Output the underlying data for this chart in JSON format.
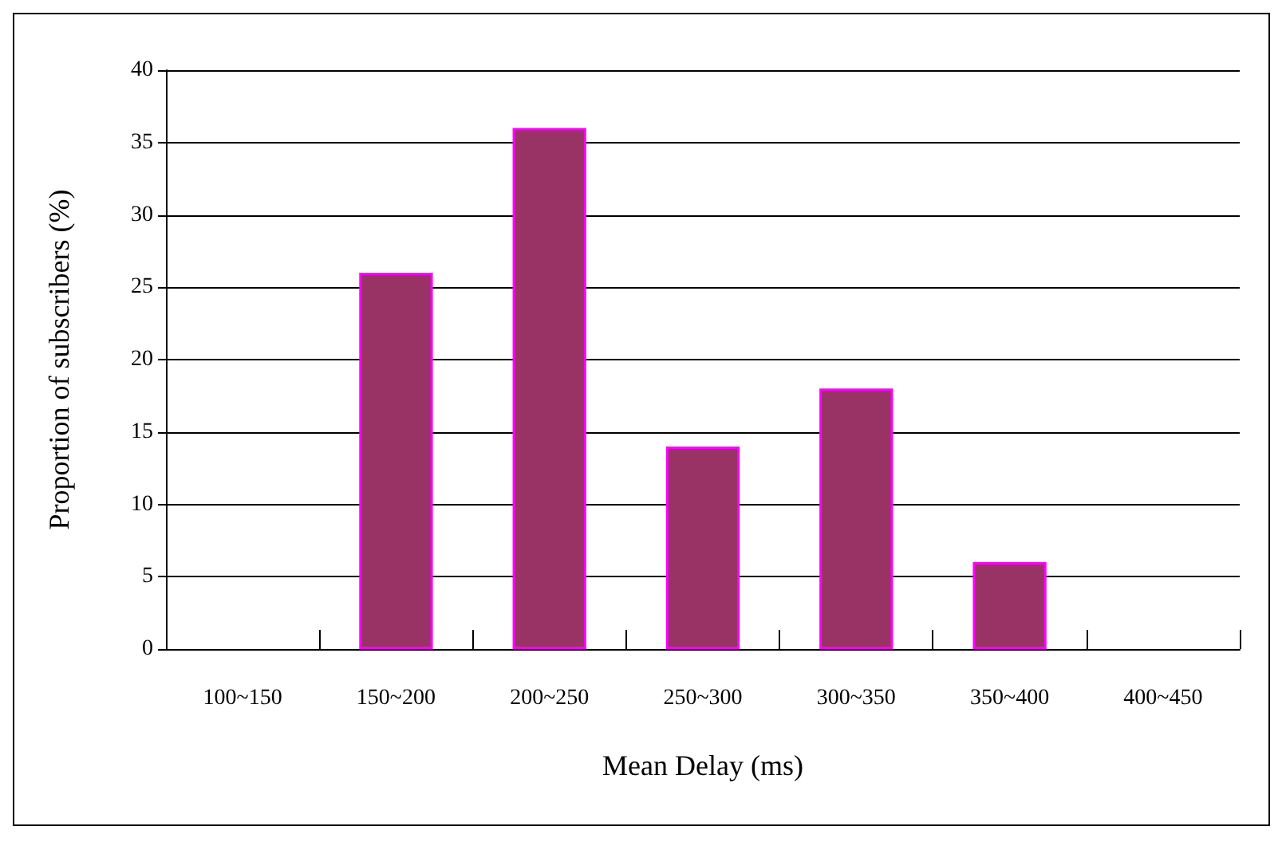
{
  "chart_data": {
    "type": "bar",
    "xlabel": "Mean Delay (ms)",
    "ylabel": "Proportion of subscribers (%)",
    "categories": [
      "100~150",
      "150~200",
      "200~250",
      "250~300",
      "300~350",
      "350~400",
      "400~450"
    ],
    "values": [
      0,
      26,
      36,
      14,
      18,
      6,
      0
    ],
    "color": "#993366",
    "ylim": [
      0,
      40
    ],
    "yticks": [
      0,
      5,
      10,
      15,
      20,
      25,
      30,
      35,
      40
    ],
    "grid": "y"
  }
}
